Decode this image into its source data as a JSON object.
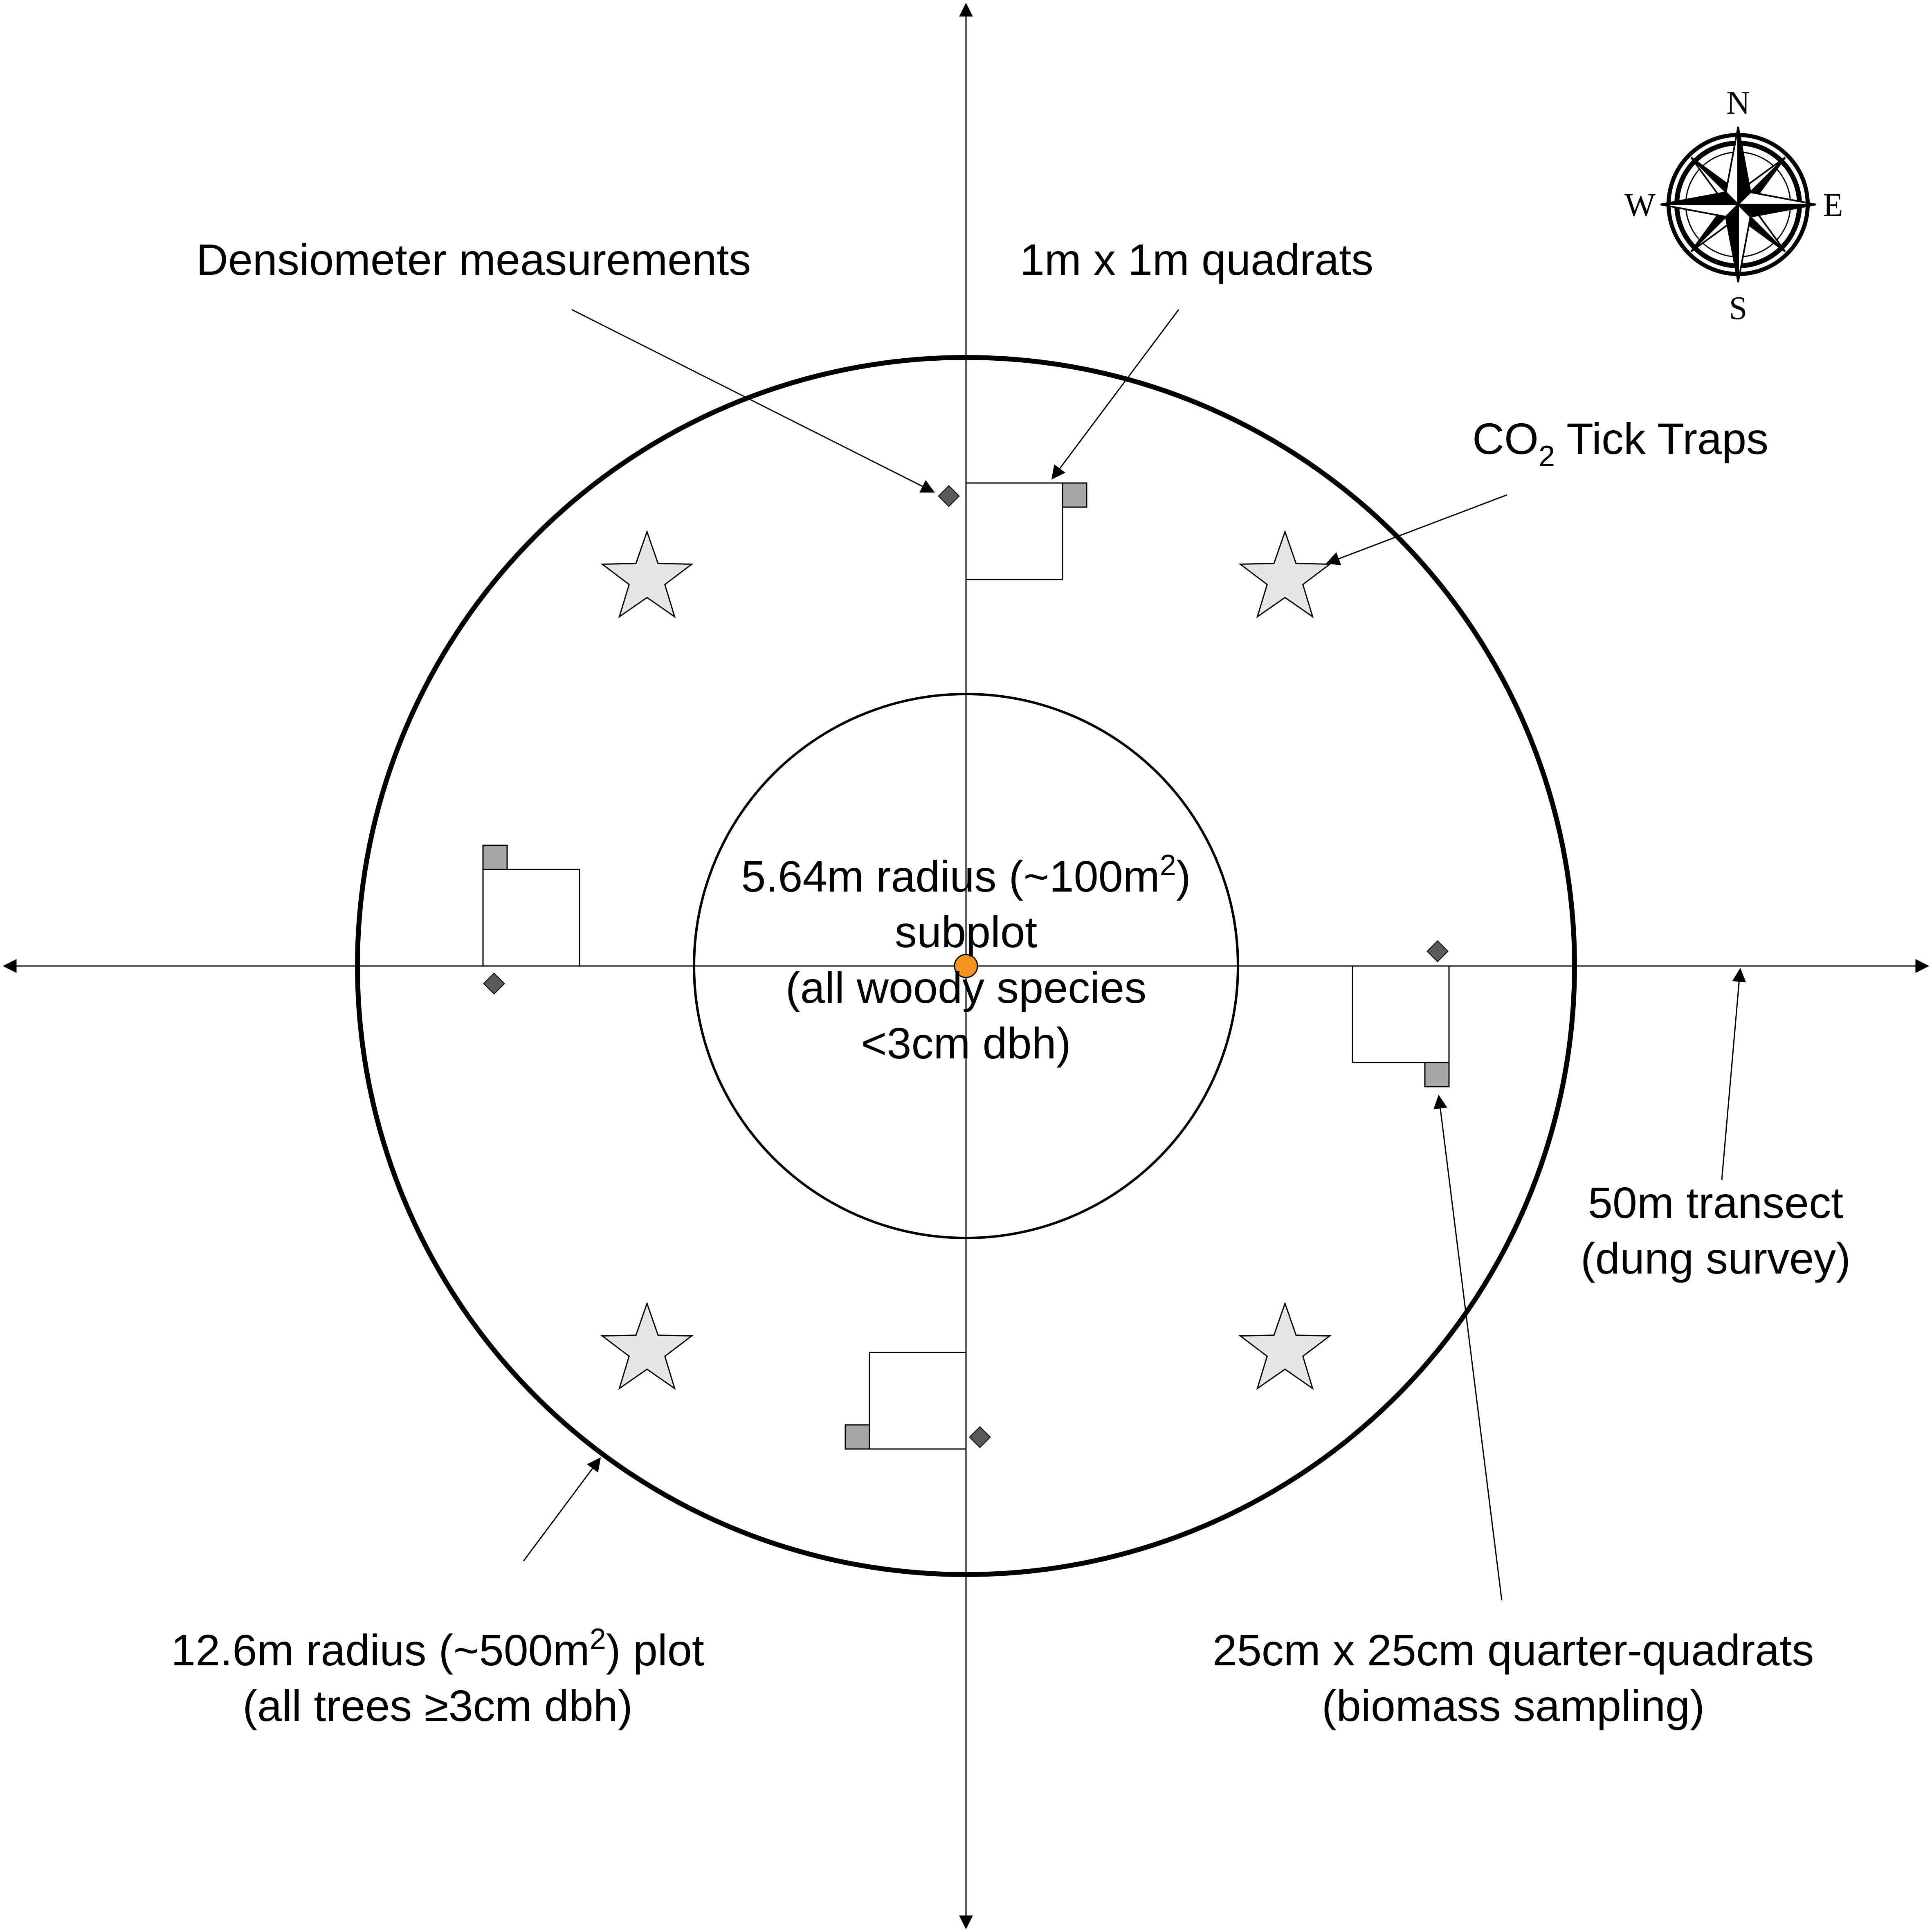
{
  "labels": {
    "densiometer": "Densiometer measurements",
    "quadrats": "1m x 1m quadrats",
    "tick_traps_prefix": "CO",
    "tick_traps_sub": "2",
    "tick_traps_suffix": " Tick Traps",
    "subplot_line1_a": "5.64m radius (~100m",
    "subplot_line1_sup": "2",
    "subplot_line1_b": ")",
    "subplot_line2": "subplot",
    "subplot_line3": "(all woody species",
    "subplot_line4": "<3cm dbh)",
    "transect_line1": "50m transect",
    "transect_line2": "(dung survey)",
    "plot_line1_a": "12.6m radius (~500m",
    "plot_line1_sup": "2",
    "plot_line1_b": ") plot",
    "plot_line2": "(all trees ≥3cm dbh)",
    "quarter_line1": "25cm x 25cm quarter-quadrats",
    "quarter_line2": "(biomass sampling)"
  },
  "compass": {
    "n": "N",
    "e": "E",
    "s": "S",
    "w": "W"
  },
  "colors": {
    "center_point": "#f7931e",
    "star_fill": "#e6e6e6",
    "quarter_quadrat_fill": "#a6a6a6",
    "diamond_fill": "#595959"
  }
}
